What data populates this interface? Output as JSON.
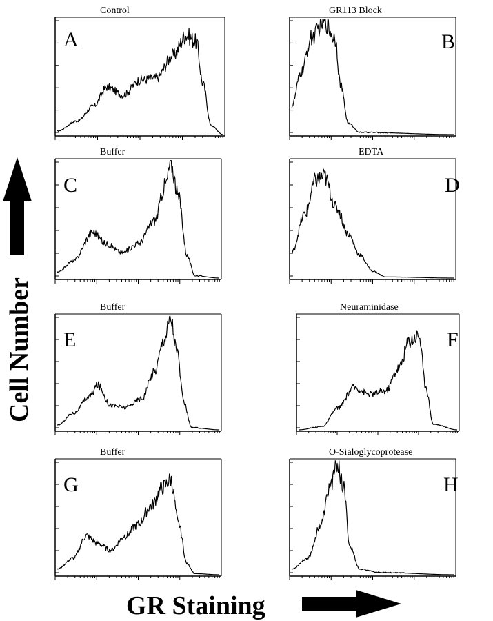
{
  "colors": {
    "ink": "#000000",
    "background": "#ffffff"
  },
  "labels": {
    "y_axis": "Cell Number",
    "x_axis": "GR Staining"
  },
  "chart_data": [
    {
      "id": "A",
      "type": "area",
      "panel_letter": "A",
      "title": "Control",
      "x_range": [
        0,
        1
      ],
      "y_range": [
        0,
        1
      ],
      "peaks": [
        {
          "x": 0.0,
          "y": 0.03
        },
        {
          "x": 0.12,
          "y": 0.12
        },
        {
          "x": 0.22,
          "y": 0.25
        },
        {
          "x": 0.3,
          "y": 0.42
        },
        {
          "x": 0.4,
          "y": 0.35
        },
        {
          "x": 0.5,
          "y": 0.48
        },
        {
          "x": 0.6,
          "y": 0.5
        },
        {
          "x": 0.7,
          "y": 0.7
        },
        {
          "x": 0.78,
          "y": 0.88
        },
        {
          "x": 0.84,
          "y": 0.82
        },
        {
          "x": 0.88,
          "y": 0.45
        },
        {
          "x": 0.93,
          "y": 0.08
        },
        {
          "x": 1.0,
          "y": 0.0
        }
      ]
    },
    {
      "id": "B",
      "type": "area",
      "panel_letter": "B",
      "title": "GR113 Block",
      "x_range": [
        0,
        1
      ],
      "y_range": [
        0,
        1
      ],
      "peaks": [
        {
          "x": 0.0,
          "y": 0.25
        },
        {
          "x": 0.06,
          "y": 0.55
        },
        {
          "x": 0.12,
          "y": 0.85
        },
        {
          "x": 0.2,
          "y": 1.0
        },
        {
          "x": 0.27,
          "y": 0.85
        },
        {
          "x": 0.3,
          "y": 0.45
        },
        {
          "x": 0.35,
          "y": 0.1
        },
        {
          "x": 0.42,
          "y": 0.02
        },
        {
          "x": 1.0,
          "y": 0.0
        }
      ]
    },
    {
      "id": "C",
      "type": "area",
      "panel_letter": "C",
      "title": "Buffer",
      "x_range": [
        0,
        1
      ],
      "y_range": [
        0,
        1
      ],
      "peaks": [
        {
          "x": 0.0,
          "y": 0.05
        },
        {
          "x": 0.1,
          "y": 0.15
        },
        {
          "x": 0.22,
          "y": 0.4
        },
        {
          "x": 0.3,
          "y": 0.3
        },
        {
          "x": 0.4,
          "y": 0.22
        },
        {
          "x": 0.5,
          "y": 0.3
        },
        {
          "x": 0.6,
          "y": 0.5
        },
        {
          "x": 0.67,
          "y": 0.82
        },
        {
          "x": 0.7,
          "y": 1.0
        },
        {
          "x": 0.75,
          "y": 0.7
        },
        {
          "x": 0.8,
          "y": 0.2
        },
        {
          "x": 0.85,
          "y": 0.02
        },
        {
          "x": 1.0,
          "y": 0.0
        }
      ]
    },
    {
      "id": "D",
      "type": "area",
      "panel_letter": "D",
      "title": "EDTA",
      "x_range": [
        0,
        1
      ],
      "y_range": [
        0,
        1
      ],
      "peaks": [
        {
          "x": 0.0,
          "y": 0.22
        },
        {
          "x": 0.08,
          "y": 0.55
        },
        {
          "x": 0.15,
          "y": 0.85
        },
        {
          "x": 0.2,
          "y": 0.88
        },
        {
          "x": 0.28,
          "y": 0.6
        },
        {
          "x": 0.35,
          "y": 0.38
        },
        {
          "x": 0.42,
          "y": 0.2
        },
        {
          "x": 0.5,
          "y": 0.06
        },
        {
          "x": 0.58,
          "y": 0.01
        },
        {
          "x": 1.0,
          "y": 0.0
        }
      ]
    },
    {
      "id": "E",
      "type": "area",
      "panel_letter": "E",
      "title": "Buffer",
      "x_range": [
        0,
        1
      ],
      "y_range": [
        0,
        1
      ],
      "peaks": [
        {
          "x": 0.0,
          "y": 0.04
        },
        {
          "x": 0.1,
          "y": 0.15
        },
        {
          "x": 0.2,
          "y": 0.3
        },
        {
          "x": 0.25,
          "y": 0.4
        },
        {
          "x": 0.33,
          "y": 0.22
        },
        {
          "x": 0.42,
          "y": 0.2
        },
        {
          "x": 0.52,
          "y": 0.28
        },
        {
          "x": 0.6,
          "y": 0.52
        },
        {
          "x": 0.66,
          "y": 0.82
        },
        {
          "x": 0.7,
          "y": 1.0
        },
        {
          "x": 0.74,
          "y": 0.7
        },
        {
          "x": 0.78,
          "y": 0.25
        },
        {
          "x": 0.83,
          "y": 0.02
        },
        {
          "x": 1.0,
          "y": 0.0
        }
      ]
    },
    {
      "id": "F",
      "type": "area",
      "panel_letter": "F",
      "title": "Neuraminidase",
      "x_range": [
        0,
        1
      ],
      "y_range": [
        0,
        1
      ],
      "peaks": [
        {
          "x": 0.0,
          "y": 0.0
        },
        {
          "x": 0.15,
          "y": 0.03
        },
        {
          "x": 0.25,
          "y": 0.2
        },
        {
          "x": 0.35,
          "y": 0.38
        },
        {
          "x": 0.45,
          "y": 0.32
        },
        {
          "x": 0.55,
          "y": 0.35
        },
        {
          "x": 0.63,
          "y": 0.55
        },
        {
          "x": 0.7,
          "y": 0.8
        },
        {
          "x": 0.76,
          "y": 0.85
        },
        {
          "x": 0.8,
          "y": 0.4
        },
        {
          "x": 0.85,
          "y": 0.05
        },
        {
          "x": 1.0,
          "y": 0.0
        }
      ]
    },
    {
      "id": "G",
      "type": "area",
      "panel_letter": "G",
      "title": "Buffer",
      "x_range": [
        0,
        1
      ],
      "y_range": [
        0,
        1
      ],
      "peaks": [
        {
          "x": 0.0,
          "y": 0.05
        },
        {
          "x": 0.1,
          "y": 0.15
        },
        {
          "x": 0.18,
          "y": 0.35
        },
        {
          "x": 0.25,
          "y": 0.28
        },
        {
          "x": 0.33,
          "y": 0.22
        },
        {
          "x": 0.42,
          "y": 0.35
        },
        {
          "x": 0.5,
          "y": 0.45
        },
        {
          "x": 0.58,
          "y": 0.62
        },
        {
          "x": 0.65,
          "y": 0.78
        },
        {
          "x": 0.7,
          "y": 0.85
        },
        {
          "x": 0.75,
          "y": 0.45
        },
        {
          "x": 0.8,
          "y": 0.1
        },
        {
          "x": 0.85,
          "y": 0.01
        },
        {
          "x": 1.0,
          "y": 0.0
        }
      ]
    },
    {
      "id": "H",
      "type": "area",
      "panel_letter": "H",
      "title": "O-Sialoglycoprotease",
      "x_range": [
        0,
        1
      ],
      "y_range": [
        0,
        1
      ],
      "peaks": [
        {
          "x": 0.0,
          "y": 0.05
        },
        {
          "x": 0.1,
          "y": 0.15
        },
        {
          "x": 0.18,
          "y": 0.45
        },
        {
          "x": 0.24,
          "y": 0.8
        },
        {
          "x": 0.28,
          "y": 1.0
        },
        {
          "x": 0.32,
          "y": 0.78
        },
        {
          "x": 0.36,
          "y": 0.25
        },
        {
          "x": 0.42,
          "y": 0.05
        },
        {
          "x": 0.55,
          "y": 0.02
        },
        {
          "x": 1.0,
          "y": 0.0
        }
      ]
    }
  ]
}
